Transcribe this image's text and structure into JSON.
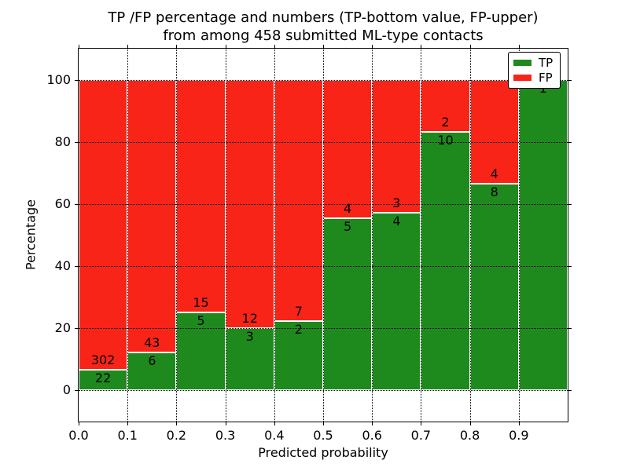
{
  "chart_data": {
    "type": "bar",
    "stacked": true,
    "title_lines": [
      "TP /FP percentage and numbers (TP-bottom value, FP-upper)",
      "from among 458 submitted ML-type contacts"
    ],
    "xlabel": "Predicted probability",
    "ylabel": "Percentage",
    "xlim": [
      0.0,
      1.0
    ],
    "ylim": [
      -10,
      110
    ],
    "x_ticks": [
      "0.0",
      "0.1",
      "0.2",
      "0.3",
      "0.4",
      "0.5",
      "0.6",
      "0.7",
      "0.8",
      "0.9"
    ],
    "y_ticks": [
      "0",
      "20",
      "40",
      "60",
      "80",
      "100"
    ],
    "grid": "dotted, drawn over bars",
    "total_submitted": 458,
    "legend": {
      "position": "upper right",
      "entries": [
        {
          "label": "TP",
          "color": "#1e8a1e"
        },
        {
          "label": "FP",
          "color": "#f82418"
        }
      ]
    },
    "bins": [
      {
        "x_start": 0.0,
        "x_end": 0.1,
        "tp": 22,
        "fp": 302
      },
      {
        "x_start": 0.1,
        "x_end": 0.2,
        "tp": 6,
        "fp": 43
      },
      {
        "x_start": 0.2,
        "x_end": 0.3,
        "tp": 5,
        "fp": 15
      },
      {
        "x_start": 0.3,
        "x_end": 0.4,
        "tp": 3,
        "fp": 12
      },
      {
        "x_start": 0.4,
        "x_end": 0.5,
        "tp": 2,
        "fp": 7
      },
      {
        "x_start": 0.5,
        "x_end": 0.6,
        "tp": 5,
        "fp": 4
      },
      {
        "x_start": 0.6,
        "x_end": 0.7,
        "tp": 4,
        "fp": 3
      },
      {
        "x_start": 0.7,
        "x_end": 0.8,
        "tp": 10,
        "fp": 2
      },
      {
        "x_start": 0.8,
        "x_end": 0.9,
        "tp": 8,
        "fp": 4
      },
      {
        "x_start": 0.9,
        "x_end": 1.0,
        "tp": 1,
        "fp": 0
      }
    ],
    "annotation_note": "FP count shown above TP/FP boundary, TP count shown below boundary"
  }
}
